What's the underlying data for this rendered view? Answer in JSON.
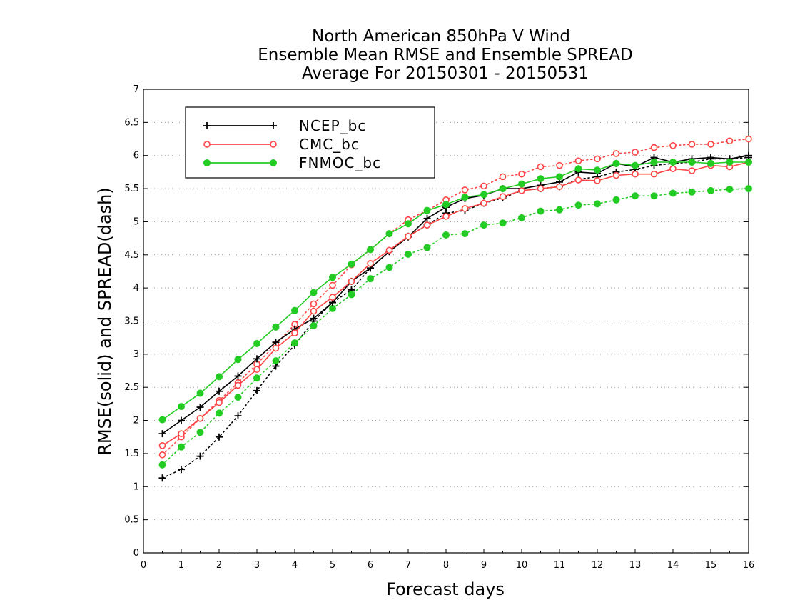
{
  "chart_data": {
    "type": "line",
    "title_lines": [
      "North American 850hPa V Wind",
      "Ensemble Mean RMSE and Ensemble SPREAD",
      "Average For 20150301 - 20150531"
    ],
    "xlabel": "Forecast days",
    "ylabel": "RMSE(solid) and SPREAD(dash)",
    "xlim": [
      0,
      16
    ],
    "ylim": [
      0,
      7
    ],
    "x_ticks": [
      "0",
      "1",
      "2",
      "3",
      "4",
      "5",
      "6",
      "7",
      "8",
      "9",
      "10",
      "11",
      "12",
      "13",
      "14",
      "15",
      "16"
    ],
    "y_ticks": [
      "0",
      "0.5",
      "1",
      "1.5",
      "2",
      "2.5",
      "3",
      "3.5",
      "4",
      "4.5",
      "5",
      "5.5",
      "6",
      "6.5",
      "7"
    ],
    "grid": "horizontal dotted",
    "legend_position": "top-left",
    "x": [
      0.5,
      1,
      1.5,
      2,
      2.5,
      3,
      3.5,
      4,
      4.5,
      5,
      5.5,
      6,
      6.5,
      7,
      7.5,
      8,
      8.5,
      9,
      9.5,
      10,
      10.5,
      11,
      11.5,
      12,
      12.5,
      13,
      13.5,
      14,
      14.5,
      15,
      15.5,
      16
    ],
    "series": [
      {
        "name": "NCEP_bc",
        "color": "#000000",
        "marker": "plus",
        "rmse": [
          1.8,
          2.0,
          2.2,
          2.44,
          2.67,
          2.93,
          3.18,
          3.38,
          3.54,
          3.78,
          4.1,
          4.3,
          4.55,
          4.77,
          5.05,
          5.22,
          5.35,
          5.4,
          5.5,
          5.5,
          5.55,
          5.6,
          5.75,
          5.73,
          5.88,
          5.83,
          5.97,
          5.9,
          5.95,
          5.97,
          5.95,
          6.0
        ],
        "spread": [
          1.13,
          1.26,
          1.46,
          1.75,
          2.07,
          2.45,
          2.82,
          3.14,
          3.5,
          3.78,
          3.97,
          4.3,
          4.55,
          4.78,
          4.95,
          5.13,
          5.17,
          5.28,
          5.36,
          5.47,
          5.5,
          5.53,
          5.64,
          5.68,
          5.75,
          5.79,
          5.85,
          5.88,
          5.9,
          5.95,
          5.95,
          5.97
        ]
      },
      {
        "name": "CMC_bc",
        "color": "#ff4444",
        "marker": "open-circle",
        "rmse": [
          1.62,
          1.8,
          2.03,
          2.27,
          2.53,
          2.77,
          3.09,
          3.32,
          3.65,
          3.86,
          4.1,
          4.37,
          4.57,
          4.78,
          4.95,
          5.08,
          5.2,
          5.28,
          5.38,
          5.47,
          5.5,
          5.53,
          5.63,
          5.62,
          5.7,
          5.72,
          5.72,
          5.8,
          5.77,
          5.85,
          5.83,
          5.9
        ],
        "spread": [
          1.48,
          1.75,
          2.03,
          2.3,
          2.57,
          2.85,
          3.15,
          3.45,
          3.76,
          4.04,
          4.35,
          4.58,
          4.82,
          5.03,
          5.17,
          5.33,
          5.48,
          5.54,
          5.68,
          5.72,
          5.83,
          5.85,
          5.92,
          5.95,
          6.03,
          6.05,
          6.12,
          6.15,
          6.17,
          6.17,
          6.22,
          6.25
        ]
      },
      {
        "name": "FNMOC_bc",
        "color": "#22cc22",
        "marker": "filled-circle",
        "rmse": [
          2.01,
          2.21,
          2.41,
          2.66,
          2.92,
          3.16,
          3.41,
          3.66,
          3.93,
          4.16,
          4.36,
          4.58,
          4.82,
          4.97,
          5.17,
          5.26,
          5.37,
          5.41,
          5.5,
          5.57,
          5.65,
          5.68,
          5.8,
          5.78,
          5.88,
          5.85,
          5.9,
          5.9,
          5.9,
          5.88,
          5.9,
          5.9
        ],
        "spread": [
          1.33,
          1.6,
          1.82,
          2.11,
          2.35,
          2.64,
          2.9,
          3.17,
          3.43,
          3.69,
          3.9,
          4.14,
          4.31,
          4.51,
          4.61,
          4.8,
          4.82,
          4.95,
          4.98,
          5.06,
          5.16,
          5.18,
          5.25,
          5.27,
          5.33,
          5.39,
          5.39,
          5.43,
          5.45,
          5.47,
          5.49,
          5.5
        ]
      }
    ]
  }
}
